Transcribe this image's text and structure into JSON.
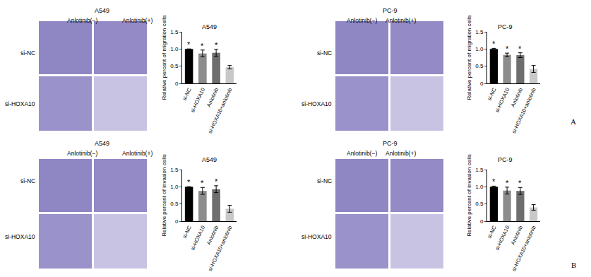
{
  "image_panels": [
    {
      "title": "A549",
      "columns": [
        "Anlotinib(−)",
        "Anlotinib(+)"
      ],
      "rows": [
        "si-NC",
        "si-HOXA10"
      ]
    },
    {
      "title": "PC-9",
      "columns": [
        "Anlotinib(−)",
        "Anlotinib(+)"
      ],
      "rows": [
        "si-NC",
        "si-HOXA10"
      ]
    },
    {
      "title": "A549",
      "columns": [
        "Anlotinib(−)",
        "Anlotinib(+)"
      ],
      "rows": [
        "si-NC",
        "si-HOXA10"
      ]
    },
    {
      "title": "PC-9",
      "columns": [
        "Anlotinib(−)",
        "Anlotinib(+)"
      ],
      "rows": [
        "si-NC",
        "si-HOXA10"
      ]
    }
  ],
  "panel_labels": [
    "A",
    "B"
  ],
  "chart_data": [
    {
      "type": "bar",
      "title": "A549",
      "y_label": "Relative percent of migration cells",
      "categories": [
        "si-NC",
        "si-HOXA10",
        "Anlotinib",
        "si-HOXA10+anlotinib"
      ],
      "values": [
        1.0,
        0.87,
        0.89,
        0.47
      ],
      "errors": [
        0.0,
        0.1,
        0.1,
        0.05
      ],
      "colors": [
        "#000000",
        "#8c8c8c",
        "#6e6e6e",
        "#c8c8c8"
      ],
      "annotations": [
        {
          "category": "si-NC",
          "text": "*"
        },
        {
          "category": "si-HOXA10",
          "text": "*"
        },
        {
          "category": "Anlotinib",
          "text": "*"
        }
      ],
      "ylim": [
        0,
        1.5
      ],
      "yticks": [
        0,
        0.5,
        {
          "value": 1,
          "label": "1.0"
        },
        1.5
      ]
    },
    {
      "type": "bar",
      "title": "PC-9",
      "y_label": "Relative percent of migration cells",
      "categories": [
        "si-NC",
        "si-HOXA10",
        "Anlotinib",
        "si-HOXA10+anlotinib"
      ],
      "values": [
        1.0,
        0.83,
        0.82,
        0.42
      ],
      "errors": [
        0.02,
        0.05,
        0.07,
        0.1
      ],
      "colors": [
        "#000000",
        "#8c8c8c",
        "#6e6e6e",
        "#c8c8c8"
      ],
      "annotations": [
        {
          "category": "si-NC",
          "text": "*"
        },
        {
          "category": "si-HOXA10",
          "text": "*"
        },
        {
          "category": "Anlotinib",
          "text": "*"
        }
      ],
      "ylim": [
        0,
        1.5
      ],
      "yticks": [
        0,
        0.5,
        {
          "value": 1,
          "label": "1.0"
        },
        1.5
      ]
    },
    {
      "type": "bar",
      "title": "A549",
      "y_label": "Relative percent of invasion cells",
      "categories": [
        "si-NC",
        "si-HOXA10",
        "Anlotinib",
        "si-HOXA10+anlotinib"
      ],
      "values": [
        1.0,
        0.88,
        0.93,
        0.36
      ],
      "errors": [
        0.0,
        0.1,
        0.1,
        0.1
      ],
      "colors": [
        "#000000",
        "#8c8c8c",
        "#6e6e6e",
        "#c8c8c8"
      ],
      "annotations": [
        {
          "category": "si-NC",
          "text": "*"
        },
        {
          "category": "si-HOXA10",
          "text": "*"
        },
        {
          "category": "Anlotinib",
          "text": "*"
        }
      ],
      "ylim": [
        0,
        1.5
      ],
      "yticks": [
        0,
        0.5,
        {
          "value": 1,
          "label": "1.0"
        },
        1.5
      ]
    },
    {
      "type": "bar",
      "title": "PC-9",
      "y_label": "Relative percent of invasion cells",
      "categories": [
        "si-NC",
        "si-HOXA10",
        "Anlotinib",
        "si-HOXA10+anlotinib"
      ],
      "values": [
        1.0,
        0.89,
        0.88,
        0.4
      ],
      "errors": [
        0.02,
        0.1,
        0.1,
        0.08
      ],
      "colors": [
        "#000000",
        "#8c8c8c",
        "#6e6e6e",
        "#c8c8c8"
      ],
      "annotations": [
        {
          "category": "si-NC",
          "text": "*"
        },
        {
          "category": "si-HOXA10",
          "text": "*"
        },
        {
          "category": "Anlotinib",
          "text": "*"
        }
      ],
      "ylim": [
        0,
        1.5
      ],
      "yticks": [
        0,
        0.5,
        {
          "value": 1,
          "label": "1.0"
        },
        1.5
      ]
    }
  ]
}
